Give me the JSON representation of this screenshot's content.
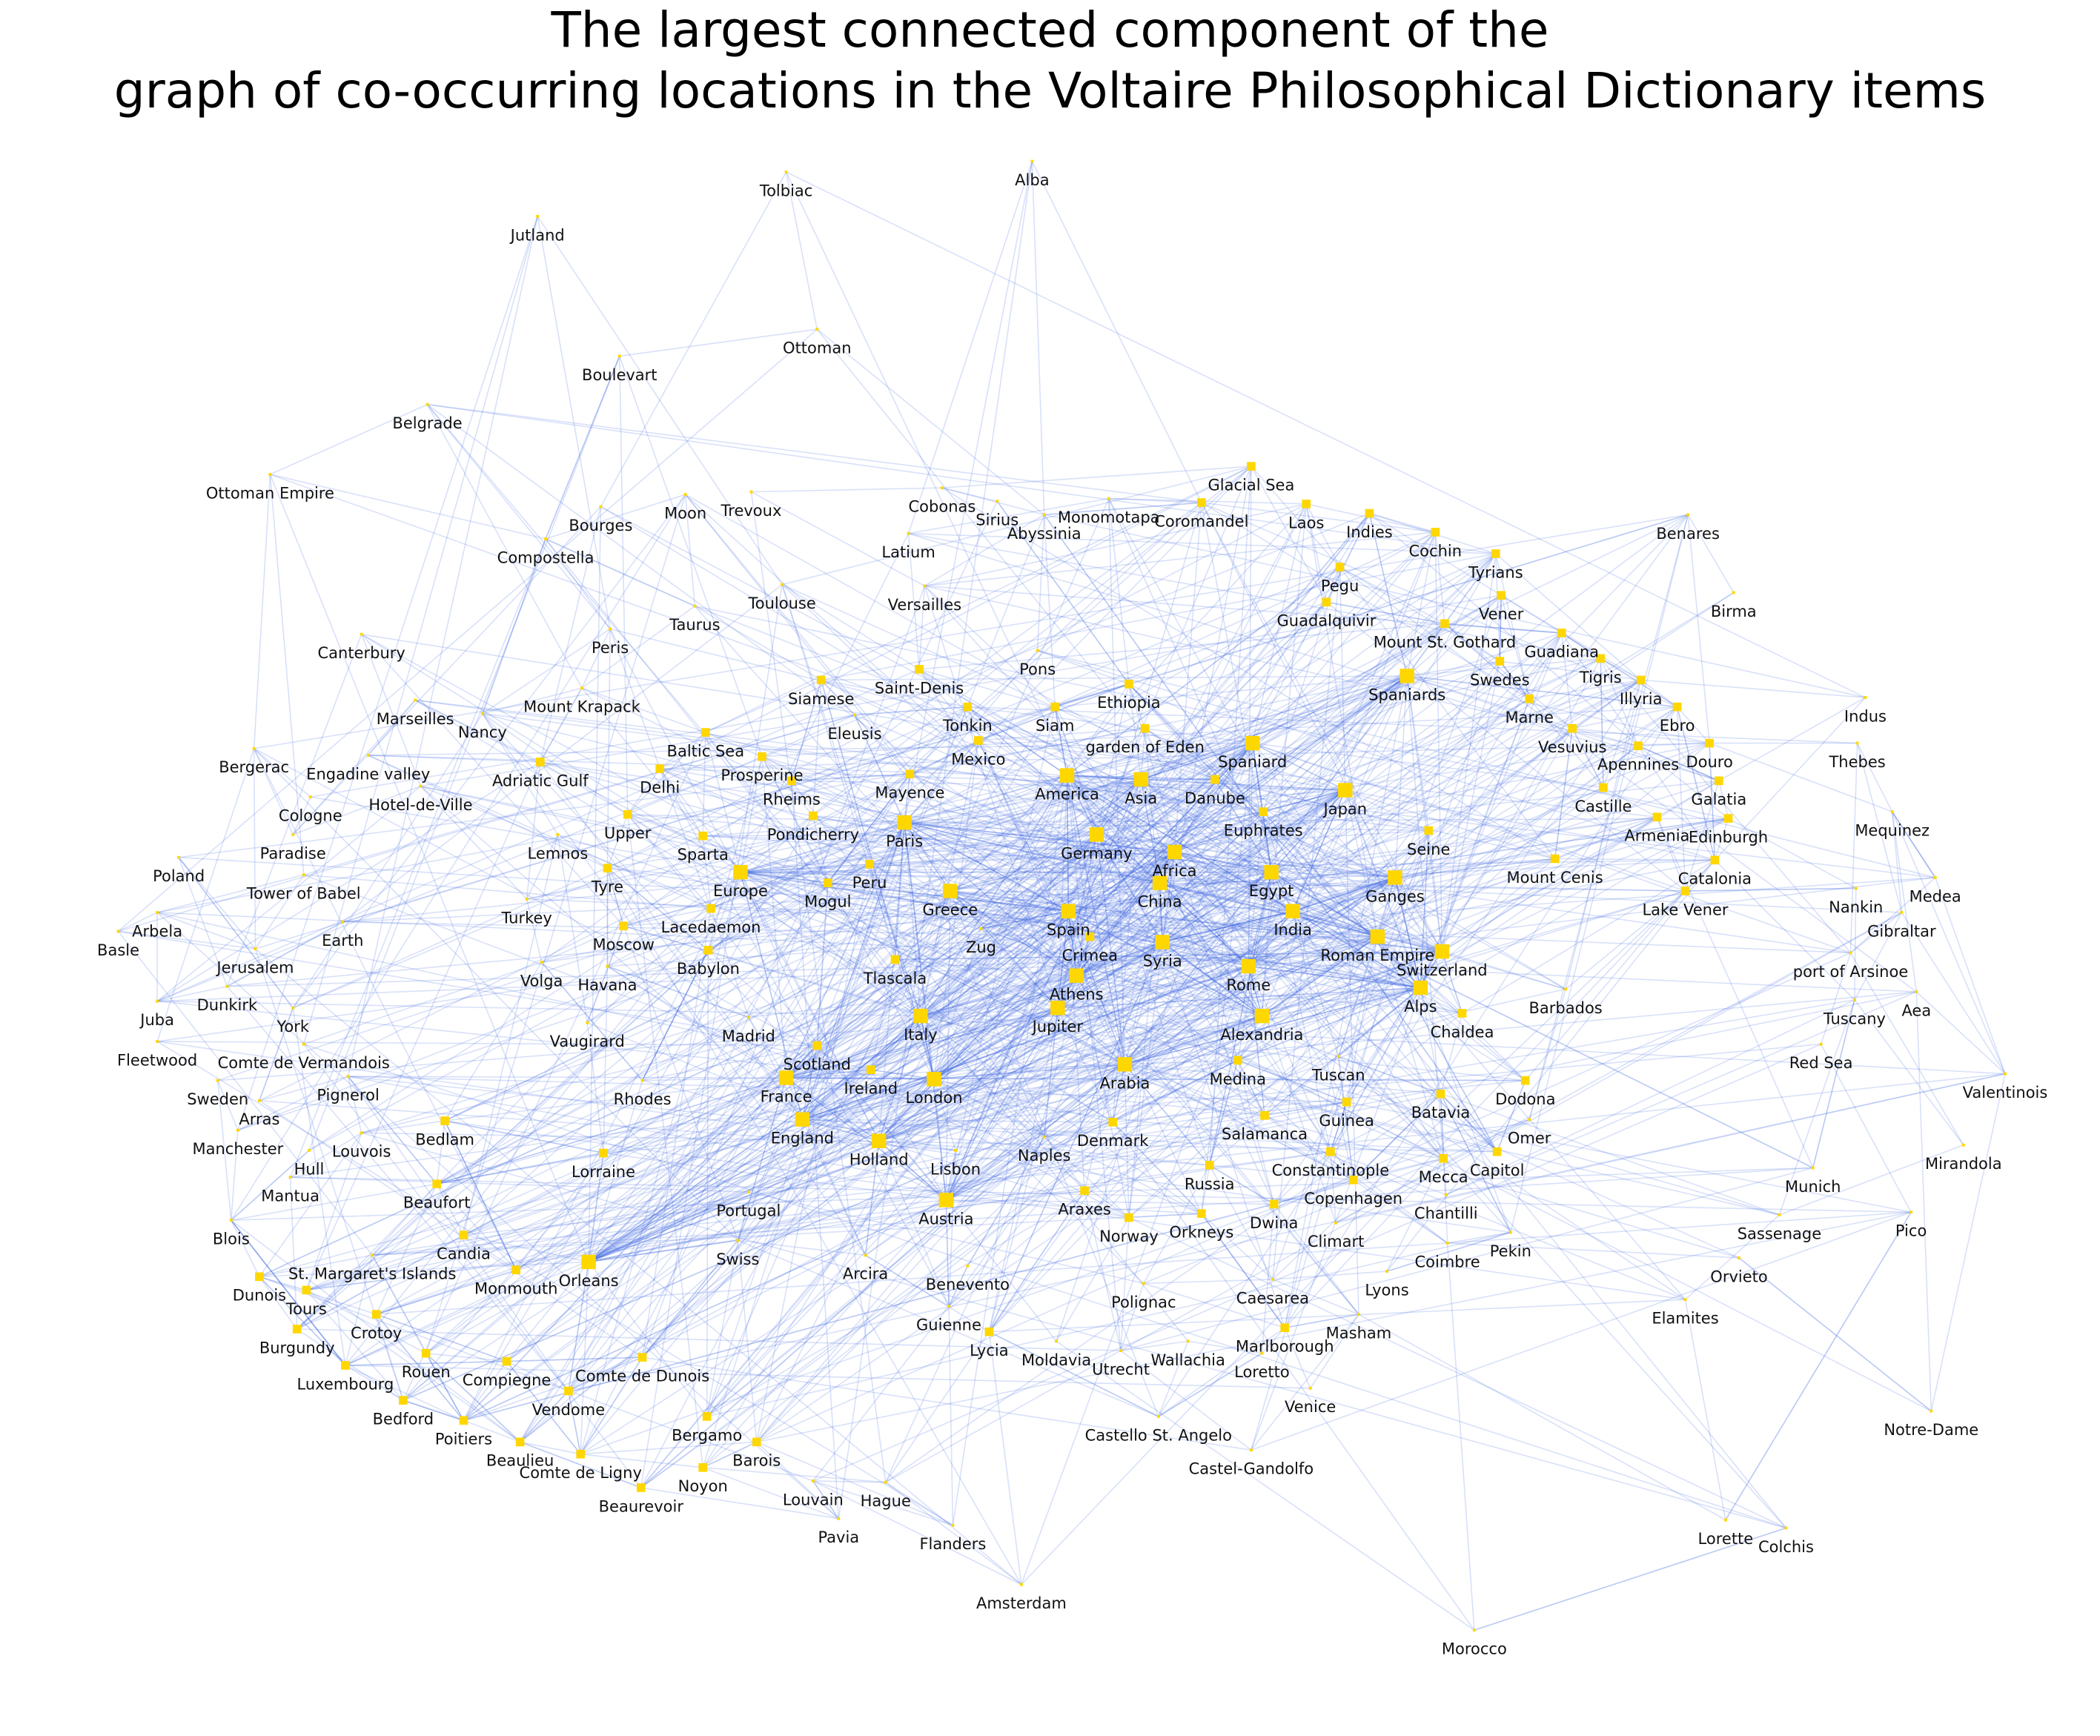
{
  "title": {
    "line1": "The largest connected component of the",
    "line2": "graph of co-occurring locations in the Voltaire Philosophical Dictionary items"
  },
  "colors": {
    "node": "#FFD700",
    "edge": "#4169E1",
    "label": "#111111",
    "background": "#FFFFFF"
  },
  "nodes": [
    "Tolbiac",
    "Alba",
    "Jutland",
    "Ottoman",
    "Boulevart",
    "Belgrade",
    "Ottoman Empire",
    "Glacial Sea",
    "Cobonas",
    "Monomotapa",
    "Trevoux",
    "Moon",
    "Sirius",
    "Coromandel",
    "Laos",
    "Indies",
    "Benares",
    "Bourges",
    "Abyssinia",
    "Latium",
    "Cochin",
    "Compostella",
    "Tyrians",
    "Pegu",
    "Toulouse",
    "Versailles",
    "Birma",
    "Vener",
    "Guadalquivir",
    "Taurus",
    "Mount St. Gothard",
    "Peris",
    "Guadiana",
    "Canterbury",
    "Pons",
    "Swedes",
    "Tigris",
    "Saint-Denis",
    "Ethiopia",
    "Spaniards",
    "Illyria",
    "Mount Krapack",
    "Siamese",
    "Indus",
    "Marseilles",
    "Eleusis",
    "Tonkin",
    "Siam",
    "Marne",
    "Nancy",
    "Ebro",
    "Baltic Sea",
    "garden of Eden",
    "Vesuvius",
    "Mexico",
    "Douro",
    "Thebes",
    "Bergerac",
    "Engadine valley",
    "Adriatic Gulf",
    "Prosperine",
    "Spaniard",
    "Delhi",
    "America",
    "Asia",
    "Danube",
    "Apennines",
    "Cologne",
    "Hotel-de-Ville",
    "Rheims",
    "Mayence",
    "Galatia",
    "Castille",
    "Japan",
    "Euphrates",
    "Upper",
    "Mequinez",
    "Pondicherry",
    "Paris",
    "Edinburgh",
    "Armenia",
    "Germany",
    "Africa",
    "Seine",
    "Lemnos",
    "Paradise",
    "Sparta",
    "Poland",
    "Mount Cenis",
    "Catalonia",
    "Tyre",
    "Egypt",
    "Europe",
    "Ganges",
    "Peru",
    "Mogul",
    "Tower of Babel",
    "Medea",
    "China",
    "Greece",
    "Lake Vener",
    "Nankin",
    "Turkey",
    "India",
    "Lacedaemon",
    "Gibraltar",
    "Spain",
    "Arbela",
    "Earth",
    "Moscow",
    "Roman Empire",
    "Zug",
    "Crimea",
    "Syria",
    "Switzerland",
    "Jerusalem",
    "port of Arsinoe",
    "Babylon",
    "Rome",
    "Tlascala",
    "Basle",
    "Havana",
    "Volga",
    "Athens",
    "Alps",
    "Dunkirk",
    "Barbados",
    "Juba",
    "York",
    "Jupiter",
    "Tuscany",
    "Aea",
    "Alexandria",
    "Chaldea",
    "Vaugirard",
    "Madrid",
    "Italy",
    "Fleetwood",
    "Comte de Vermandois",
    "Red Sea",
    "Scotland",
    "Tuscan",
    "Valentinois",
    "Arabia",
    "Ireland",
    "Medina",
    "Dodona",
    "Pignerol",
    "Sweden",
    "Rhodes",
    "Batavia",
    "France",
    "London",
    "Arras",
    "Guinea",
    "England",
    "Omer",
    "Salamanca",
    "Denmark",
    "Bedlam",
    "Holland",
    "Manchester",
    "Louvois",
    "Naples",
    "Mecca",
    "Capitol",
    "Constantinople",
    "Hull",
    "Lisbon",
    "Lorraine",
    "Mirandola",
    "Munich",
    "Russia",
    "Mantua",
    "Beaufort",
    "Copenhagen",
    "Portugal",
    "Araxes",
    "Austria",
    "Chantilli",
    "Blois",
    "Orkneys",
    "Norway",
    "Dwina",
    "Sassenage",
    "Pico",
    "Climart",
    "Candia",
    "Swiss",
    "Coimbre",
    "Pekin",
    "St. Margaret's Islands",
    "Orleans",
    "Arcira",
    "Monmouth",
    "Benevento",
    "Orvieto",
    "Lyons",
    "Dunois",
    "Polignac",
    "Tours",
    "Caesarea",
    "Crotoy",
    "Elamites",
    "Masham",
    "Guienne",
    "Burgundy",
    "Marlborough",
    "Lycia",
    "Moldavia",
    "Wallachia",
    "Rouen",
    "Utrecht",
    "Comte de Dunois",
    "Compiegne",
    "Loretto",
    "Luxembourg",
    "Vendome",
    "Venice",
    "Notre-Dame",
    "Bedford",
    "Castello St. Angelo",
    "Bergamo",
    "Poitiers",
    "Barois",
    "Beaulieu",
    "Comte de Ligny",
    "Castel-Gandolfo",
    "Noyon",
    "Beaurevoir",
    "Louvain",
    "Hague",
    "Lorette",
    "Pavia",
    "Flanders",
    "Colchis",
    "Amsterdam",
    "Morocco"
  ]
}
